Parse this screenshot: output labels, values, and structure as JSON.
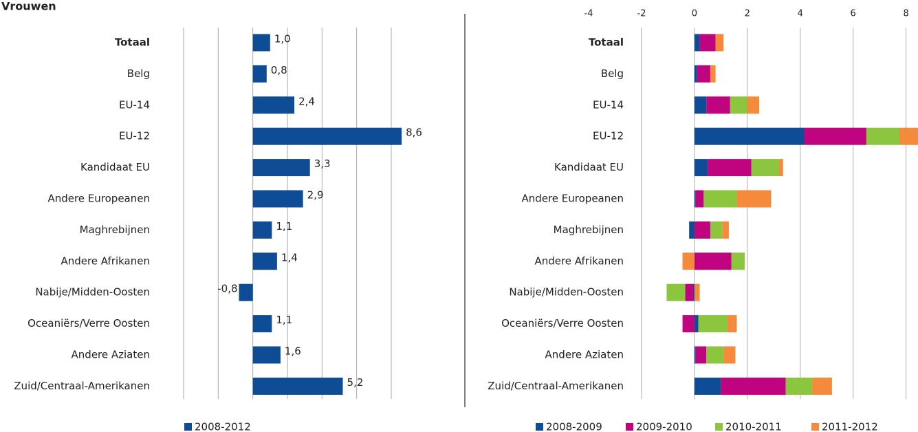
{
  "title": "Vrouwen",
  "chart_data": [
    {
      "type": "bar",
      "orientation": "horizontal",
      "stacked": false,
      "categories": [
        "Totaal",
        "Belg",
        "EU-14",
        "EU-12",
        "Kandidaat EU",
        "Andere Europeanen",
        "Maghrebijnen",
        "Andere Afrikanen",
        "Nabije/Midden-Oosten",
        "Oceaniërs/Verre Oosten",
        "Andere Aziaten",
        "Zuid/Centraal-Amerikanen"
      ],
      "bold_categories": [
        "Totaal"
      ],
      "series": [
        {
          "name": "2008-2012",
          "color": "#0e4c96",
          "values": [
            1.0,
            0.8,
            2.4,
            8.6,
            3.3,
            2.9,
            1.1,
            1.4,
            -0.8,
            1.1,
            1.6,
            5.2
          ],
          "value_labels": [
            "1,0",
            "0,8",
            "2,4",
            "8,6",
            "3,3",
            "2,9",
            "1,1",
            "1,4",
            "-0,8",
            "1,1",
            "1,6",
            "5,2"
          ]
        }
      ],
      "xlim": [
        -4,
        8
      ],
      "xticks": [
        -4,
        -2,
        0,
        2,
        4,
        6,
        8
      ],
      "tick_labels": false,
      "grid": true,
      "legend": "bottom"
    },
    {
      "type": "bar",
      "orientation": "horizontal",
      "stacked": true,
      "categories": [
        "Totaal",
        "Belg",
        "EU-14",
        "EU-12",
        "Kandidaat EU",
        "Andere Europeanen",
        "Maghrebijnen",
        "Andere Afrikanen",
        "Nabije/Midden-Oosten",
        "Oceaniërs/Verre Oosten",
        "Andere Aziaten",
        "Zuid/Centraal-Amerikanen"
      ],
      "bold_categories": [
        "Totaal"
      ],
      "series": [
        {
          "name": "2008-2009",
          "color": "#0e4c96",
          "values": [
            0.2,
            0.1,
            0.45,
            4.15,
            0.5,
            0.05,
            -0.2,
            0,
            -0.05,
            0.15,
            0.05,
            1.0
          ]
        },
        {
          "name": "2009-2010",
          "color": "#c0047f",
          "values": [
            0.6,
            0.5,
            0.9,
            2.35,
            1.65,
            0.3,
            0.6,
            1.4,
            -0.3,
            -0.45,
            0.4,
            2.45
          ]
        },
        {
          "name": "2010-2011",
          "color": "#8cc63f",
          "values": [
            0,
            0,
            0.65,
            1.25,
            1.05,
            1.25,
            0.45,
            0.5,
            -0.7,
            1.1,
            0.65,
            1.0
          ]
        },
        {
          "name": "2011-2012",
          "color": "#f58a3c",
          "values": [
            0.3,
            0.2,
            0.45,
            0.9,
            0.15,
            1.3,
            0.25,
            -0.45,
            0.2,
            0.35,
            0.45,
            0.75
          ]
        }
      ],
      "xlim": [
        -4,
        8.4
      ],
      "xticks": [
        -4,
        -2,
        0,
        2,
        4,
        6,
        8
      ],
      "tick_labels": true,
      "grid": true,
      "legend": "bottom"
    }
  ]
}
